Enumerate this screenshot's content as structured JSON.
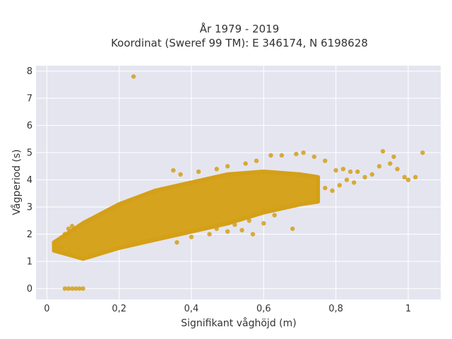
{
  "chart_data": {
    "type": "scatter",
    "title_line1": "År 1979 - 2019",
    "title_line2": "Koordinat (Sweref 99 TM): E 346174, N 6198628",
    "xlabel": "Signifikant våghöjd (m)",
    "ylabel": "Vågperiod (s)",
    "xlim": [
      -0.03,
      1.09
    ],
    "ylim": [
      -0.4,
      8.2
    ],
    "x_ticks": [
      0,
      0.2,
      0.4,
      0.6,
      0.8,
      1
    ],
    "x_tick_labels": [
      "0",
      "0,2",
      "0,4",
      "0,6",
      "0,8",
      "1"
    ],
    "y_ticks": [
      0,
      1,
      2,
      3,
      4,
      5,
      6,
      7,
      8
    ],
    "y_tick_labels": [
      "0",
      "1",
      "2",
      "3",
      "4",
      "5",
      "6",
      "7",
      "8"
    ],
    "grid": true,
    "colors": {
      "marker": "#D4A017",
      "plot_bg": "#E5E5F0",
      "grid": "#FFFFFF"
    },
    "series": [
      {
        "density_band": {
          "x_range": [
            0.02,
            0.75
          ],
          "upper": [
            [
              0.02,
              1.7
            ],
            [
              0.1,
              2.4
            ],
            [
              0.2,
              3.1
            ],
            [
              0.3,
              3.6
            ],
            [
              0.4,
              3.9
            ],
            [
              0.5,
              4.2
            ],
            [
              0.6,
              4.3
            ],
            [
              0.7,
              4.2
            ],
            [
              0.75,
              4.1
            ]
          ],
          "lower": [
            [
              0.02,
              1.4
            ],
            [
              0.1,
              1.1
            ],
            [
              0.2,
              1.5
            ],
            [
              0.3,
              1.8
            ],
            [
              0.4,
              2.1
            ],
            [
              0.5,
              2.4
            ],
            [
              0.6,
              2.8
            ],
            [
              0.7,
              3.1
            ],
            [
              0.75,
              3.2
            ]
          ]
        },
        "points": [
          [
            0.24,
            7.8
          ],
          [
            0.05,
            0.0
          ],
          [
            0.06,
            0.0
          ],
          [
            0.07,
            0.0
          ],
          [
            0.08,
            0.0
          ],
          [
            0.09,
            0.0
          ],
          [
            0.1,
            0.0
          ],
          [
            1.04,
            5.0
          ],
          [
            0.93,
            5.05
          ],
          [
            0.96,
            4.85
          ],
          [
            0.97,
            4.4
          ],
          [
            0.99,
            4.1
          ],
          [
            1.02,
            4.1
          ],
          [
            1.0,
            4.0
          ],
          [
            0.9,
            4.2
          ],
          [
            0.88,
            4.1
          ],
          [
            0.86,
            4.3
          ],
          [
            0.92,
            4.5
          ],
          [
            0.95,
            4.6
          ],
          [
            0.85,
            3.9
          ],
          [
            0.83,
            4.0
          ],
          [
            0.81,
            3.8
          ],
          [
            0.79,
            3.6
          ],
          [
            0.77,
            3.7
          ],
          [
            0.8,
            4.35
          ],
          [
            0.82,
            4.4
          ],
          [
            0.84,
            4.3
          ],
          [
            0.62,
            4.9
          ],
          [
            0.65,
            4.9
          ],
          [
            0.69,
            4.95
          ],
          [
            0.71,
            5.0
          ],
          [
            0.74,
            4.85
          ],
          [
            0.77,
            4.7
          ],
          [
            0.58,
            4.7
          ],
          [
            0.55,
            4.6
          ],
          [
            0.5,
            4.5
          ],
          [
            0.47,
            4.4
          ],
          [
            0.42,
            4.3
          ],
          [
            0.37,
            4.2
          ],
          [
            0.35,
            4.35
          ],
          [
            0.36,
            1.7
          ],
          [
            0.4,
            1.9
          ],
          [
            0.45,
            2.0
          ],
          [
            0.5,
            2.1
          ],
          [
            0.54,
            2.15
          ],
          [
            0.6,
            2.4
          ],
          [
            0.63,
            2.7
          ],
          [
            0.68,
            2.2
          ],
          [
            0.56,
            2.5
          ],
          [
            0.52,
            2.35
          ],
          [
            0.47,
            2.2
          ],
          [
            0.57,
            2.0
          ],
          [
            0.6,
            2.9
          ],
          [
            0.66,
            3.0
          ],
          [
            0.02,
            1.6
          ],
          [
            0.03,
            1.55
          ],
          [
            0.04,
            1.5
          ],
          [
            0.05,
            2.0
          ],
          [
            0.06,
            2.2
          ],
          [
            0.07,
            2.3
          ]
        ]
      }
    ]
  }
}
